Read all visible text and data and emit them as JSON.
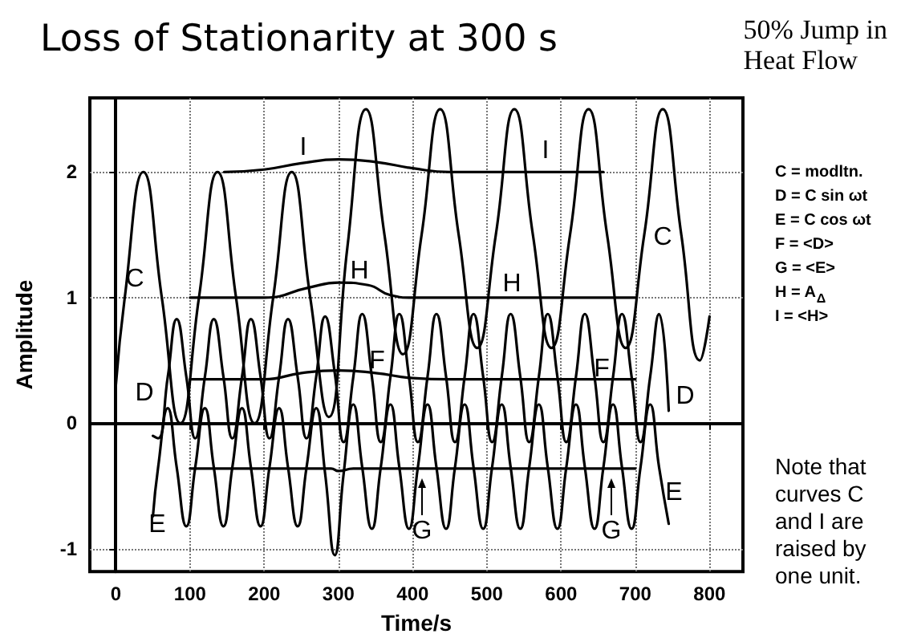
{
  "chart_data": {
    "type": "line",
    "title": "Loss of Stationarity at 300 s",
    "subtitle": "50% Jump in\nHeat Flow",
    "xlabel": "Time/s",
    "ylabel": "Amplitude",
    "xlim": [
      -35,
      845
    ],
    "ylim": [
      -1.18,
      2.59
    ],
    "xticks": [
      0,
      100,
      200,
      300,
      400,
      500,
      600,
      700,
      800
    ],
    "yticks": [
      -1,
      0,
      1,
      2
    ],
    "grid": true,
    "marker": "none",
    "line_style": "solid",
    "series": [
      {
        "name": "C",
        "color": "#000000",
        "x": [
          0,
          12,
          37,
          62,
          87,
          112,
          137,
          162,
          187,
          212,
          237,
          262,
          287,
          312,
          337,
          362,
          387,
          412,
          437,
          462,
          487,
          512,
          537,
          562,
          587,
          612,
          637,
          662,
          687,
          712,
          737,
          762,
          787,
          800
        ],
        "values": [
          0.3,
          1,
          2,
          1,
          0,
          1,
          2,
          1,
          0,
          1,
          2,
          1,
          0.05,
          1.4,
          2.5,
          1.5,
          0.55,
          1.5,
          2.5,
          1.5,
          0.6,
          1.5,
          2.5,
          1.5,
          0.6,
          1.5,
          2.5,
          1.5,
          0.6,
          1.5,
          2.5,
          1.5,
          0.5,
          0.85
        ]
      },
      {
        "name": "D",
        "color": "#000000",
        "x": [
          50,
          57,
          70,
          82,
          95,
          107,
          120,
          132,
          145,
          157,
          170,
          182,
          195,
          207,
          220,
          232,
          245,
          257,
          270,
          282,
          295,
          307,
          320,
          332,
          345,
          357,
          370,
          382,
          395,
          407,
          420,
          432,
          445,
          457,
          470,
          482,
          495,
          507,
          520,
          532,
          545,
          557,
          570,
          582,
          595,
          607,
          620,
          632,
          645,
          657,
          670,
          682,
          695,
          707,
          720,
          732,
          745
        ],
        "values": [
          -0.1,
          -0.12,
          0.37,
          0.83,
          0.37,
          -0.12,
          0.37,
          0.83,
          0.37,
          -0.12,
          0.37,
          0.83,
          0.37,
          -0.12,
          0.37,
          0.83,
          0.37,
          -0.12,
          0.37,
          0.85,
          0.4,
          -0.15,
          0.37,
          0.87,
          0.37,
          -0.15,
          0.37,
          0.87,
          0.37,
          -0.15,
          0.37,
          0.87,
          0.37,
          -0.15,
          0.37,
          0.87,
          0.37,
          -0.15,
          0.37,
          0.87,
          0.37,
          -0.15,
          0.37,
          0.87,
          0.37,
          -0.15,
          0.37,
          0.87,
          0.37,
          -0.15,
          0.37,
          0.87,
          0.37,
          -0.15,
          0.37,
          0.87,
          0.1
        ]
      },
      {
        "name": "E",
        "color": "#000000",
        "x": [
          50,
          57,
          70,
          82,
          95,
          107,
          120,
          132,
          145,
          157,
          170,
          182,
          195,
          207,
          220,
          232,
          245,
          257,
          270,
          282,
          295,
          307,
          320,
          332,
          345,
          357,
          370,
          382,
          395,
          407,
          420,
          432,
          445,
          457,
          470,
          482,
          495,
          507,
          520,
          532,
          545,
          557,
          570,
          582,
          595,
          607,
          620,
          632,
          645,
          657,
          670,
          682,
          695,
          707,
          720,
          732,
          745
        ],
        "values": [
          -0.74,
          -0.35,
          0.12,
          -0.35,
          -0.82,
          -0.35,
          0.12,
          -0.35,
          -0.82,
          -0.35,
          0.12,
          -0.35,
          -0.82,
          -0.35,
          0.12,
          -0.35,
          -0.82,
          -0.35,
          0.12,
          -0.4,
          -1.05,
          -0.4,
          0.15,
          -0.35,
          -0.84,
          -0.35,
          0.15,
          -0.35,
          -0.84,
          -0.35,
          0.15,
          -0.35,
          -0.84,
          -0.35,
          0.15,
          -0.35,
          -0.84,
          -0.35,
          0.15,
          -0.35,
          -0.84,
          -0.35,
          0.15,
          -0.35,
          -0.84,
          -0.35,
          0.15,
          -0.35,
          -0.84,
          -0.35,
          0.15,
          -0.35,
          -0.84,
          -0.35,
          0.15,
          -0.35,
          -0.8
        ]
      },
      {
        "name": "F",
        "color": "#000000",
        "x": [
          100,
          200,
          250,
          300,
          350,
          400,
          450,
          700
        ],
        "values": [
          0.35,
          0.35,
          0.4,
          0.42,
          0.4,
          0.36,
          0.35,
          0.35
        ]
      },
      {
        "name": "G",
        "color": "#000000",
        "x": [
          100,
          290,
          300,
          320,
          700
        ],
        "values": [
          -0.36,
          -0.36,
          -0.38,
          -0.36,
          -0.36
        ]
      },
      {
        "name": "H",
        "color": "#000000",
        "x": [
          100,
          200,
          260,
          300,
          340,
          370,
          400,
          700
        ],
        "values": [
          1,
          1,
          1.08,
          1.12,
          1.1,
          1.02,
          1,
          1
        ]
      },
      {
        "name": "I",
        "color": "#000000",
        "x": [
          146,
          200,
          250,
          300,
          350,
          400,
          450,
          657
        ],
        "values": [
          2,
          2.02,
          2.07,
          2.1,
          2.08,
          2.03,
          2,
          2
        ]
      }
    ],
    "annotations": [
      "C = modltn.\nD = C sin ωt\nE = C cos ωt\nF = <D>\nG = <E>\nH = A$_{Δ}$\nI = <H>",
      "Note that\ncurves C\nand I are\nraised by\none unit."
    ]
  }
}
